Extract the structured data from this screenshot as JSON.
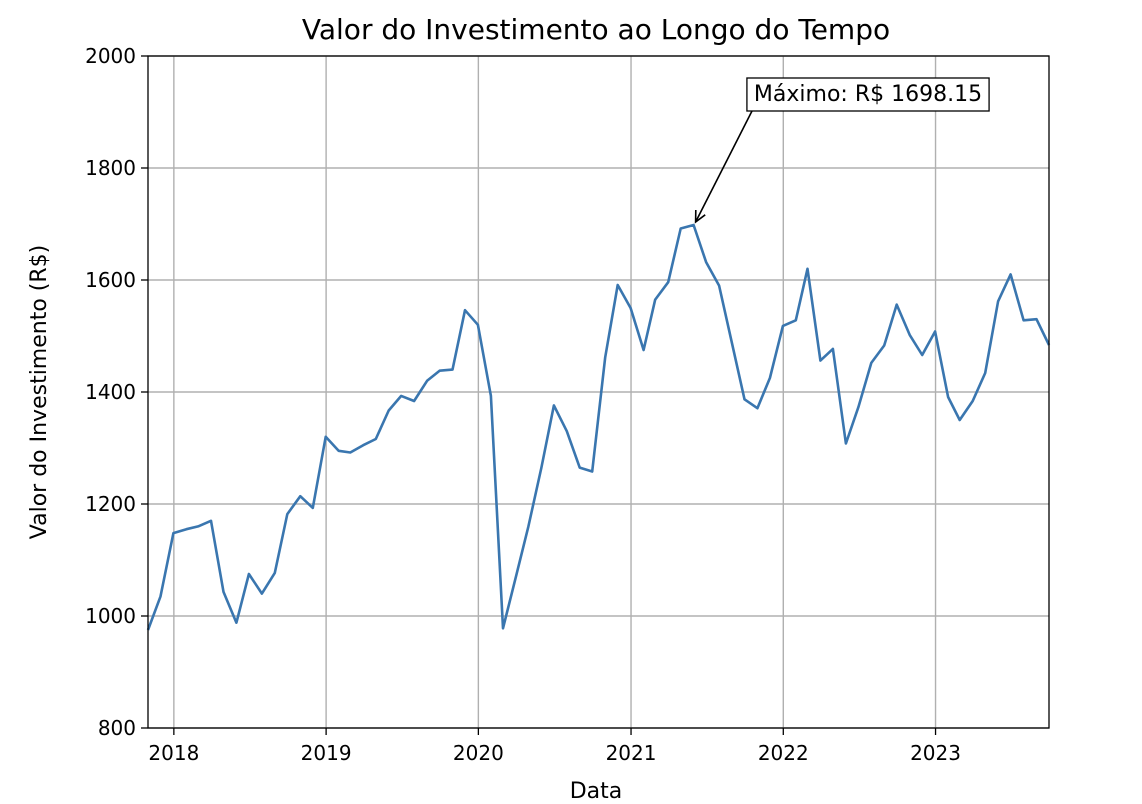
{
  "chart_data": {
    "type": "line",
    "title": "Valor do Investimento ao Longo do Tempo",
    "xlabel": "Data",
    "ylabel": "Valor do Investimento (R$)",
    "xlim": [
      "2017-10-31",
      "2023-09-30"
    ],
    "ylim": [
      800,
      2000
    ],
    "y_ticks": [
      800,
      1000,
      1200,
      1400,
      1600,
      1800,
      2000
    ],
    "x_ticks": [
      "2018",
      "2019",
      "2020",
      "2021",
      "2022",
      "2023"
    ],
    "grid": true,
    "line_color": "#3a76af",
    "annotation": {
      "text": "Máximo: R$ 1698.15",
      "x": "2021-05-31",
      "y": 1698.15
    },
    "x": [
      "2017-10-31",
      "2017-11-30",
      "2017-12-31",
      "2018-01-31",
      "2018-02-28",
      "2018-03-31",
      "2018-04-30",
      "2018-05-31",
      "2018-06-30",
      "2018-07-31",
      "2018-08-31",
      "2018-09-30",
      "2018-10-31",
      "2018-11-30",
      "2018-12-31",
      "2019-01-31",
      "2019-02-28",
      "2019-03-31",
      "2019-04-30",
      "2019-05-31",
      "2019-06-30",
      "2019-07-31",
      "2019-08-31",
      "2019-09-30",
      "2019-10-31",
      "2019-11-30",
      "2019-12-31",
      "2020-01-31",
      "2020-02-29",
      "2020-03-31",
      "2020-04-30",
      "2020-05-31",
      "2020-06-30",
      "2020-07-31",
      "2020-08-31",
      "2020-09-30",
      "2020-10-31",
      "2020-11-30",
      "2020-12-31",
      "2021-01-31",
      "2021-02-28",
      "2021-03-31",
      "2021-04-30",
      "2021-05-31",
      "2021-06-30",
      "2021-07-31",
      "2021-08-31",
      "2021-09-30",
      "2021-10-31",
      "2021-11-30",
      "2021-12-31",
      "2022-01-31",
      "2022-02-28",
      "2022-03-31",
      "2022-04-30",
      "2022-05-31",
      "2022-06-30",
      "2022-07-31",
      "2022-08-31",
      "2022-09-30",
      "2022-10-31",
      "2022-11-30",
      "2022-12-31",
      "2023-01-31",
      "2023-02-28",
      "2023-03-31",
      "2023-04-30",
      "2023-05-31",
      "2023-06-30",
      "2023-07-31",
      "2023-08-31",
      "2023-09-30"
    ],
    "values": [
      975,
      1035,
      1148,
      1155,
      1160,
      1170,
      1043,
      988,
      1075,
      1040,
      1077,
      1182,
      1214,
      1193,
      1320,
      1295,
      1292,
      1305,
      1316,
      1367,
      1393,
      1384,
      1420,
      1438,
      1440,
      1546,
      1520,
      1393,
      978,
      1070,
      1160,
      1265,
      1376,
      1330,
      1265,
      1258,
      1462,
      1591,
      1550,
      1475,
      1565,
      1596,
      1692,
      1698.15,
      1632,
      1590,
      1487,
      1387,
      1371,
      1425,
      1518,
      1528,
      1620,
      1456,
      1477,
      1308,
      1373,
      1452,
      1483,
      1556,
      1502,
      1466,
      1508,
      1391,
      1350,
      1384,
      1434,
      1562,
      1610,
      1528,
      1530,
      1484
    ]
  }
}
